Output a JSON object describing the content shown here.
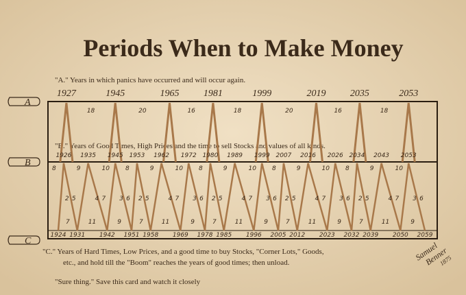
{
  "header": {
    "title": "Periods When to Make Money"
  },
  "legend_a": {
    "text": "\"A.\" Years in which panics have occurred and will occur again."
  },
  "legend_b": {
    "text": "\"B.\" Years of Good Times, High Prices and the time to sell Stocks and values of all kinds."
  },
  "legend_c": {
    "line1": "\"C.\"  Years of Hard Times, Low Prices, and a good time to buy Stocks, \"Corner Lots,\" Goods,",
    "line2": "etc., and hold till the \"Boom\" reaches the years of good times; then unload."
  },
  "footer": {
    "text": "\"Sure thing.\" Save this card and watch it closely"
  },
  "markers": {
    "a": "A",
    "b": "B",
    "c": "C"
  },
  "signature": {
    "line1": "Samuel",
    "line2": "Benner",
    "line3": "1875"
  },
  "a_years": [
    1927,
    1945,
    1965,
    1981,
    1999,
    2019,
    2035,
    2053
  ],
  "a_intervals": [
    18,
    20,
    16,
    18,
    20,
    16,
    18
  ],
  "b_years": [
    1926,
    1935,
    1945,
    1953,
    1962,
    1972,
    1980,
    1989,
    1999,
    2007,
    2016,
    2026,
    2034,
    2043,
    2053
  ],
  "b_top_numbers": [
    8,
    9,
    10,
    8,
    9,
    10,
    8,
    9,
    10,
    8,
    9,
    10,
    8,
    9,
    10
  ],
  "middle_pairs": [
    [
      2,
      5
    ],
    [
      4,
      7
    ],
    [
      3,
      6
    ],
    [
      2,
      5
    ],
    [
      4,
      7
    ],
    [
      3,
      6
    ],
    [
      2,
      5
    ],
    [
      4,
      7
    ],
    [
      3,
      6
    ],
    [
      2,
      5
    ],
    [
      4,
      7
    ],
    [
      3,
      6
    ],
    [
      2,
      5
    ],
    [
      4,
      7
    ],
    [
      3,
      6
    ]
  ],
  "c_years": [
    1924,
    1931,
    1942,
    1951,
    1958,
    1969,
    1978,
    1985,
    1996,
    2005,
    2012,
    2023,
    2032,
    2039,
    2050,
    2059
  ],
  "c_intervals": [
    7,
    11,
    9,
    7,
    11,
    9,
    7,
    11,
    9,
    7,
    11,
    9,
    7,
    11,
    9
  ]
}
